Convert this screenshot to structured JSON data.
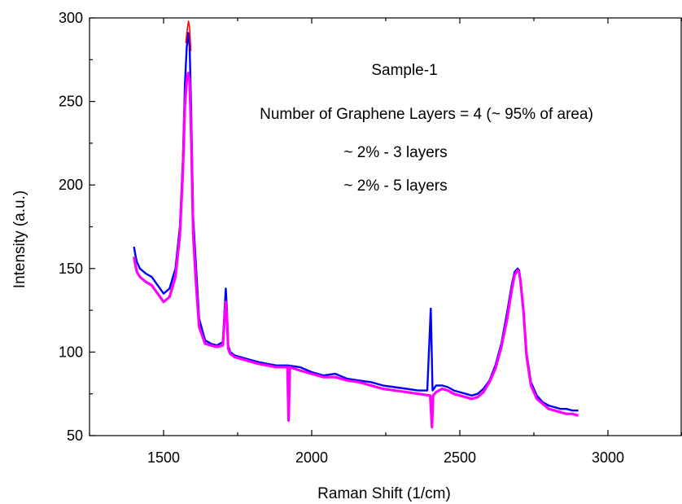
{
  "chart_data": {
    "type": "line",
    "title": "",
    "xlabel": "Raman Shift (1/cm)",
    "ylabel": "Intensity (a.u.)",
    "xlim": [
      1250,
      3250
    ],
    "ylim": [
      50,
      300
    ],
    "xticks": [
      1500,
      2000,
      2500,
      3000
    ],
    "yticks": [
      50,
      100,
      150,
      200,
      250,
      300
    ],
    "grid": false,
    "annotations": [
      "Sample-1",
      "Number of Graphene Layers = 4 (~ 95% of area)",
      "~ 2% - 3 layers",
      "~ 2% - 5 layers"
    ],
    "series": [
      {
        "color": "#0000ff",
        "x": [
          1400,
          1405,
          1410,
          1420,
          1440,
          1460,
          1480,
          1500,
          1520,
          1540,
          1555,
          1565,
          1572,
          1578,
          1583,
          1588,
          1593,
          1600,
          1610,
          1620,
          1640,
          1660,
          1680,
          1700,
          1710,
          1714,
          1718,
          1725,
          1740,
          1780,
          1820,
          1850,
          1880,
          1920,
          1960,
          2000,
          2040,
          2080,
          2120,
          2160,
          2200,
          2240,
          2280,
          2320,
          2360,
          2390,
          2402,
          2408,
          2412,
          2420,
          2440,
          2460,
          2480,
          2500,
          2520,
          2540,
          2560,
          2580,
          2600,
          2620,
          2640,
          2660,
          2675,
          2685,
          2695,
          2700,
          2705,
          2715,
          2725,
          2740,
          2760,
          2780,
          2800,
          2820,
          2840,
          2860,
          2880,
          2900
        ],
        "y": [
          163,
          158,
          154,
          150,
          147,
          145,
          140,
          135,
          138,
          150,
          175,
          215,
          260,
          282,
          291,
          283,
          245,
          180,
          150,
          120,
          107,
          105,
          104,
          106,
          138,
          125,
          104,
          100,
          98,
          96,
          94,
          93,
          92,
          92,
          91,
          88,
          86,
          87,
          84,
          83,
          82,
          80,
          79,
          78,
          77,
          77,
          126,
          77,
          78,
          80,
          80,
          79,
          77,
          76,
          75,
          74,
          75,
          78,
          83,
          92,
          105,
          124,
          140,
          148,
          150,
          149,
          143,
          125,
          100,
          82,
          74,
          70,
          68,
          67,
          66,
          66,
          65,
          65
        ]
      },
      {
        "color": "#ff0000",
        "x": [
          1575,
          1580,
          1584,
          1588,
          1592
        ],
        "y": [
          285,
          293,
          298,
          294,
          280
        ]
      },
      {
        "color": "#ff00ff",
        "x": [
          1400,
          1405,
          1410,
          1420,
          1440,
          1460,
          1480,
          1500,
          1520,
          1540,
          1555,
          1565,
          1572,
          1578,
          1583,
          1588,
          1593,
          1600,
          1610,
          1620,
          1640,
          1660,
          1680,
          1700,
          1710,
          1714,
          1718,
          1725,
          1740,
          1780,
          1820,
          1850,
          1880,
          1918,
          1922,
          1926,
          1960,
          2000,
          2040,
          2080,
          2120,
          2160,
          2200,
          2240,
          2280,
          2320,
          2360,
          2400,
          2406,
          2410,
          2420,
          2440,
          2460,
          2480,
          2500,
          2520,
          2540,
          2560,
          2580,
          2600,
          2620,
          2640,
          2660,
          2675,
          2685,
          2695,
          2700,
          2705,
          2715,
          2725,
          2740,
          2760,
          2780,
          2800,
          2820,
          2840,
          2860,
          2880,
          2900
        ],
        "y": [
          157,
          152,
          148,
          145,
          142,
          140,
          135,
          130,
          133,
          145,
          170,
          208,
          248,
          262,
          267,
          262,
          230,
          170,
          140,
          115,
          105,
          104,
          103,
          104,
          130,
          120,
          102,
          99,
          97,
          95,
          93,
          92,
          91,
          91,
          59,
          91,
          89,
          87,
          85,
          85,
          83,
          82,
          80,
          78,
          77,
          76,
          75,
          74,
          55,
          74,
          76,
          78,
          77,
          75,
          74,
          73,
          72,
          73,
          76,
          82,
          90,
          103,
          120,
          137,
          146,
          149,
          148,
          142,
          124,
          98,
          80,
          72,
          69,
          66,
          65,
          64,
          63,
          63,
          62
        ]
      }
    ]
  }
}
